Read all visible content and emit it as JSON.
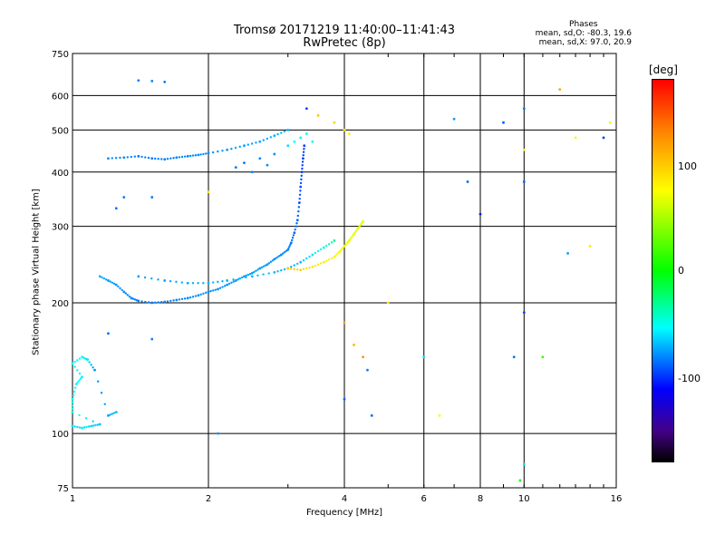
{
  "chart_data": {
    "type": "scatter",
    "title": "Tromsø 20171219 11:40:00–11:41:43",
    "subtitle": "RwPretec (8p)",
    "xlabel": "Frequency [MHz]",
    "ylabel": "Stationary phase Virtual Height [km]",
    "x_scale": "log",
    "y_scale": "log",
    "xlim": [
      1,
      16
    ],
    "ylim": [
      75,
      750
    ],
    "x_ticks": [
      "1",
      "2",
      "4",
      "6",
      "8",
      "10",
      "16"
    ],
    "y_ticks": [
      "75",
      "100",
      "200",
      "300",
      "400",
      "500",
      "600",
      "750"
    ],
    "grid": true,
    "colorbar": {
      "label": "[deg]",
      "range": [
        -180,
        180
      ],
      "ticks": [
        "100",
        "0",
        "-100"
      ]
    },
    "phase_stats": {
      "heading": "Phases",
      "line_o": "mean, sd,O: -80.3, 19.6",
      "line_x": "mean, sd,X:  97.0, 20.9"
    },
    "traces": [
      {
        "points": [
          [
            1.0,
            104,
            -60
          ],
          [
            1.05,
            103,
            -58
          ],
          [
            1.1,
            104,
            -62
          ],
          [
            1.15,
            105,
            -70
          ],
          [
            1.0,
            112,
            -40
          ],
          [
            1.0,
            120,
            -45
          ],
          [
            1.02,
            130,
            -50
          ],
          [
            1.05,
            135,
            -55
          ],
          [
            1.0,
            145,
            -52
          ],
          [
            1.05,
            150,
            -48
          ],
          [
            1.08,
            148,
            -60
          ],
          [
            1.12,
            140,
            -85
          ],
          [
            1.2,
            110,
            -80
          ],
          [
            1.25,
            112,
            -70
          ]
        ]
      },
      {
        "points": [
          [
            1.15,
            230,
            -75
          ],
          [
            1.2,
            225,
            -80
          ],
          [
            1.25,
            220,
            -82
          ],
          [
            1.3,
            212,
            -85
          ],
          [
            1.35,
            205,
            -88
          ],
          [
            1.4,
            202,
            -90
          ],
          [
            1.5,
            200,
            -92
          ],
          [
            1.6,
            201,
            -90
          ],
          [
            1.7,
            203,
            -88
          ],
          [
            1.8,
            205,
            -87
          ],
          [
            1.9,
            208,
            -85
          ],
          [
            2.0,
            212,
            -85
          ],
          [
            2.1,
            215,
            -84
          ],
          [
            2.2,
            220,
            -82
          ],
          [
            2.3,
            225,
            -82
          ],
          [
            2.4,
            230,
            -80
          ],
          [
            2.5,
            234,
            -80
          ],
          [
            2.6,
            240,
            -80
          ],
          [
            2.7,
            245,
            -82
          ],
          [
            2.8,
            252,
            -84
          ],
          [
            2.9,
            258,
            -86
          ],
          [
            3.0,
            265,
            -88
          ],
          [
            3.05,
            275,
            -92
          ],
          [
            3.1,
            290,
            -95
          ],
          [
            3.15,
            310,
            -98
          ],
          [
            3.18,
            340,
            -102
          ],
          [
            3.2,
            370,
            -105
          ],
          [
            3.22,
            400,
            -108
          ],
          [
            3.24,
            430,
            -110
          ],
          [
            3.26,
            460,
            -108
          ]
        ]
      },
      {
        "points": [
          [
            1.4,
            230,
            -80
          ],
          [
            1.6,
            225,
            -78
          ],
          [
            1.8,
            222,
            -76
          ],
          [
            2.0,
            222,
            -75
          ],
          [
            2.2,
            225,
            -74
          ],
          [
            2.5,
            230,
            -72
          ],
          [
            2.8,
            235,
            -70
          ],
          [
            3.0,
            240,
            -75
          ],
          [
            3.2,
            248,
            -70
          ],
          [
            3.4,
            258,
            -60
          ],
          [
            3.6,
            268,
            -40
          ],
          [
            3.8,
            278,
            -20
          ]
        ]
      },
      {
        "points": [
          [
            3.0,
            240,
            120
          ],
          [
            3.2,
            238,
            115
          ],
          [
            3.4,
            242,
            110
          ],
          [
            3.6,
            248,
            108
          ],
          [
            3.8,
            255,
            105
          ],
          [
            3.9,
            262,
            100
          ],
          [
            4.0,
            270,
            98
          ],
          [
            4.1,
            278,
            96
          ],
          [
            4.2,
            288,
            95
          ],
          [
            4.3,
            298,
            94
          ],
          [
            4.4,
            308,
            95
          ]
        ]
      },
      {
        "points": [
          [
            1.2,
            430,
            -85
          ],
          [
            1.3,
            432,
            -88
          ],
          [
            1.4,
            435,
            -90
          ],
          [
            1.5,
            430,
            -92
          ],
          [
            1.6,
            428,
            -90
          ],
          [
            1.7,
            432,
            -88
          ],
          [
            1.8,
            435,
            -87
          ],
          [
            1.9,
            438,
            -86
          ],
          [
            2.0,
            442,
            -85
          ],
          [
            2.2,
            450,
            -82
          ],
          [
            2.4,
            460,
            -80
          ],
          [
            2.6,
            470,
            -78
          ],
          [
            2.8,
            485,
            -76
          ],
          [
            3.0,
            500,
            -75
          ]
        ]
      },
      {
        "points": [
          [
            2.3,
            410,
            -95
          ],
          [
            2.4,
            420,
            -92
          ],
          [
            2.5,
            400,
            -90
          ],
          [
            2.6,
            430,
            -88
          ],
          [
            2.7,
            415,
            -86
          ],
          [
            2.8,
            440,
            -84
          ],
          [
            3.0,
            460,
            -60
          ],
          [
            3.1,
            470,
            -50
          ],
          [
            3.2,
            480,
            -55
          ],
          [
            3.3,
            490,
            -40
          ],
          [
            3.4,
            470,
            -45
          ]
        ]
      },
      {
        "points": [
          [
            1.4,
            650,
            -90
          ],
          [
            1.5,
            648,
            -88
          ],
          [
            1.6,
            645,
            -92
          ],
          [
            3.3,
            560,
            -110
          ],
          [
            3.5,
            540,
            120
          ],
          [
            3.8,
            520,
            115
          ],
          [
            4.0,
            500,
            110
          ],
          [
            4.1,
            490,
            108
          ]
        ]
      },
      {
        "points": [
          [
            1.3,
            350,
            -90
          ],
          [
            1.5,
            350,
            -92
          ],
          [
            1.25,
            330,
            -95
          ],
          [
            2.0,
            360,
            110
          ],
          [
            1.2,
            170,
            -95
          ],
          [
            1.5,
            165,
            -90
          ],
          [
            2.1,
            100,
            -85
          ],
          [
            4.0,
            180,
            130
          ],
          [
            4.2,
            160,
            125
          ],
          [
            4.4,
            150,
            135
          ],
          [
            4.5,
            140,
            -90
          ],
          [
            4.0,
            120,
            -100
          ],
          [
            4.6,
            110,
            -95
          ],
          [
            5.0,
            200,
            110
          ],
          [
            6.0,
            150,
            -60
          ],
          [
            6.5,
            110,
            100
          ],
          [
            7.0,
            530,
            -80
          ],
          [
            7.5,
            380,
            -95
          ],
          [
            8.0,
            320,
            -120
          ],
          [
            9.0,
            520,
            -100
          ],
          [
            9.5,
            150,
            -95
          ],
          [
            10.0,
            190,
            -110
          ],
          [
            10.0,
            380,
            -100
          ],
          [
            10.0,
            560,
            -95
          ],
          [
            10.0,
            450,
            105
          ],
          [
            12.0,
            620,
            130
          ],
          [
            12.5,
            260,
            -80
          ],
          [
            13.0,
            480,
            105
          ],
          [
            14.0,
            270,
            110
          ],
          [
            15.0,
            480,
            -110
          ],
          [
            15.5,
            520,
            100
          ],
          [
            9.8,
            78,
            20
          ],
          [
            10.0,
            85,
            -60
          ],
          [
            11.0,
            150,
            40
          ]
        ]
      }
    ]
  }
}
